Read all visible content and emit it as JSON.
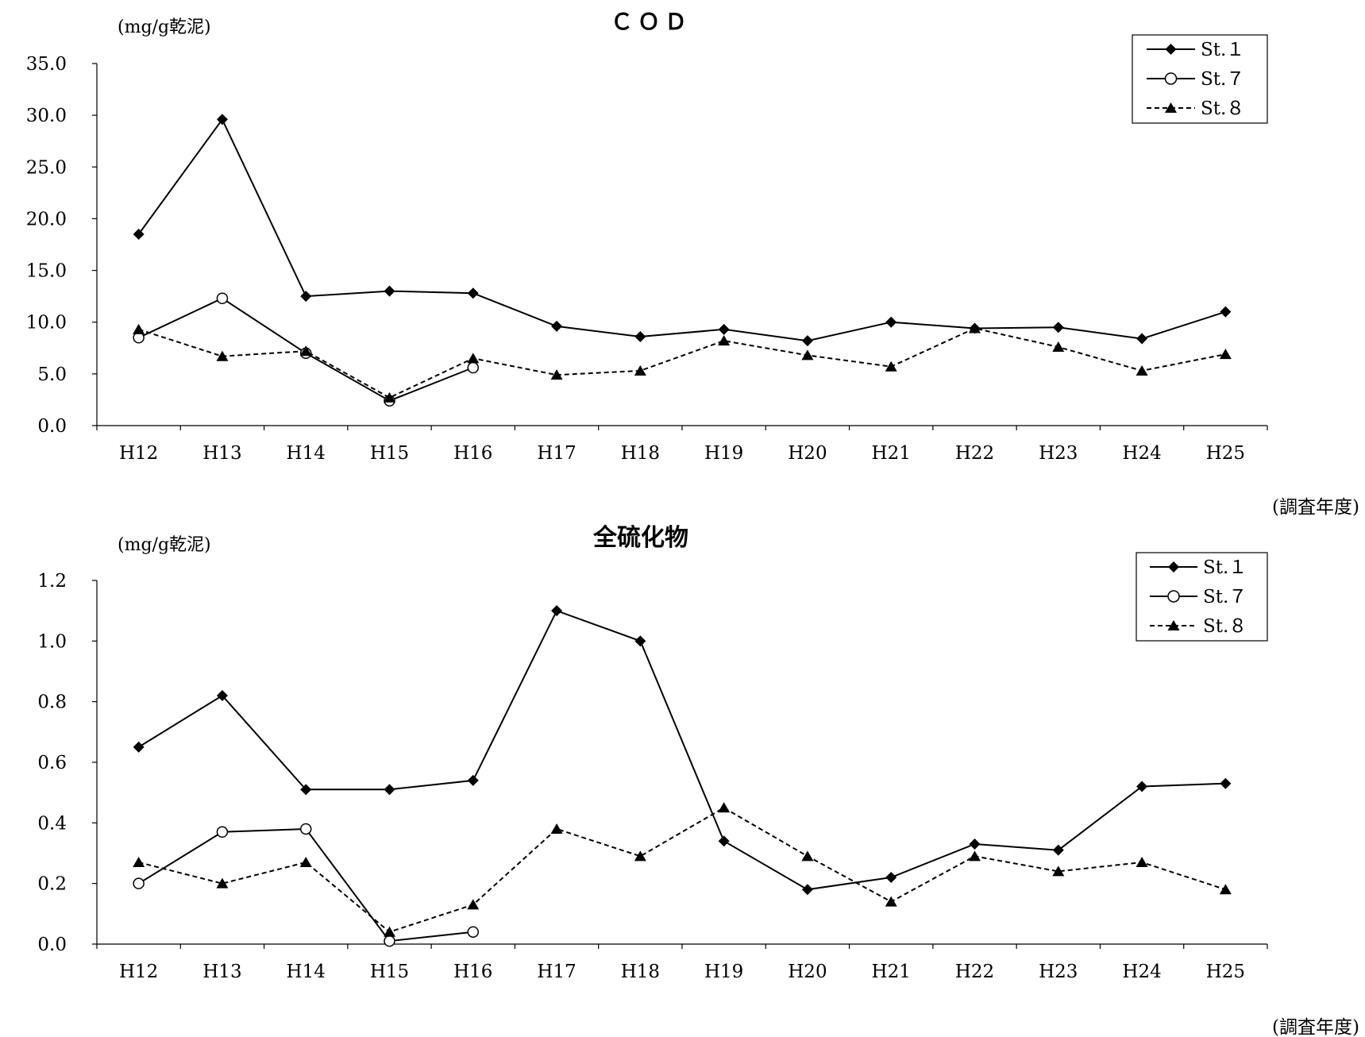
{
  "charts": [
    {
      "chart_data": {
        "type": "line",
        "title": "ＣＯＤ",
        "unit_label": "(mg/g乾泥)",
        "xlabel": "(調査年度)",
        "ylabel": "",
        "categories": [
          "H12",
          "H13",
          "H14",
          "H15",
          "H16",
          "H17",
          "H18",
          "H19",
          "H20",
          "H21",
          "H22",
          "H23",
          "H24",
          "H25"
        ],
        "ylim": [
          0,
          35
        ],
        "yticks": [
          "0.0",
          "5.0",
          "10.0",
          "15.0",
          "20.0",
          "25.0",
          "30.0",
          "35.0"
        ],
        "ytick_values": [
          0,
          5,
          10,
          15,
          20,
          25,
          30,
          35
        ],
        "grid": false,
        "legend_position": "top-right",
        "series": [
          {
            "name": "St.１",
            "marker": "diamond",
            "style": "solid",
            "values": [
              18.5,
              29.6,
              12.5,
              13.0,
              12.8,
              9.6,
              8.6,
              9.3,
              8.2,
              10.0,
              9.4,
              9.5,
              8.4,
              11.0
            ]
          },
          {
            "name": "St.７",
            "marker": "circle",
            "style": "solid",
            "values": [
              8.5,
              12.3,
              7.0,
              2.4,
              5.6,
              null,
              null,
              null,
              null,
              null,
              null,
              null,
              null,
              null
            ]
          },
          {
            "name": "St.８",
            "marker": "triangle",
            "style": "dashed",
            "values": [
              9.3,
              6.7,
              7.2,
              2.7,
              6.5,
              4.9,
              5.3,
              8.2,
              6.8,
              5.7,
              9.4,
              7.6,
              5.3,
              6.9
            ]
          }
        ]
      }
    },
    {
      "chart_data": {
        "type": "line",
        "title": "全硫化物",
        "unit_label": "(mg/g乾泥)",
        "xlabel": "(調査年度)",
        "ylabel": "",
        "categories": [
          "H12",
          "H13",
          "H14",
          "H15",
          "H16",
          "H17",
          "H18",
          "H19",
          "H20",
          "H21",
          "H22",
          "H23",
          "H24",
          "H25"
        ],
        "ylim": [
          0,
          1.2
        ],
        "yticks": [
          "0.0",
          "0.2",
          "0.4",
          "0.6",
          "0.8",
          "1.0",
          "1.2"
        ],
        "ytick_values": [
          0,
          0.2,
          0.4,
          0.6,
          0.8,
          1.0,
          1.2
        ],
        "grid": false,
        "legend_position": "top-right",
        "series": [
          {
            "name": "St.１",
            "marker": "diamond",
            "style": "solid",
            "values": [
              0.65,
              0.82,
              0.51,
              0.51,
              0.54,
              1.1,
              1.0,
              0.34,
              0.18,
              0.22,
              0.33,
              0.31,
              0.52,
              0.53
            ]
          },
          {
            "name": "St.７",
            "marker": "circle",
            "style": "solid",
            "values": [
              0.2,
              0.37,
              0.38,
              0.01,
              0.04,
              null,
              null,
              null,
              null,
              null,
              null,
              null,
              null,
              null
            ]
          },
          {
            "name": "St.８",
            "marker": "triangle",
            "style": "dashed",
            "values": [
              0.27,
              0.2,
              0.27,
              0.04,
              0.13,
              0.38,
              0.29,
              0.45,
              0.29,
              0.14,
              0.29,
              0.24,
              0.27,
              0.18
            ]
          }
        ]
      }
    }
  ]
}
